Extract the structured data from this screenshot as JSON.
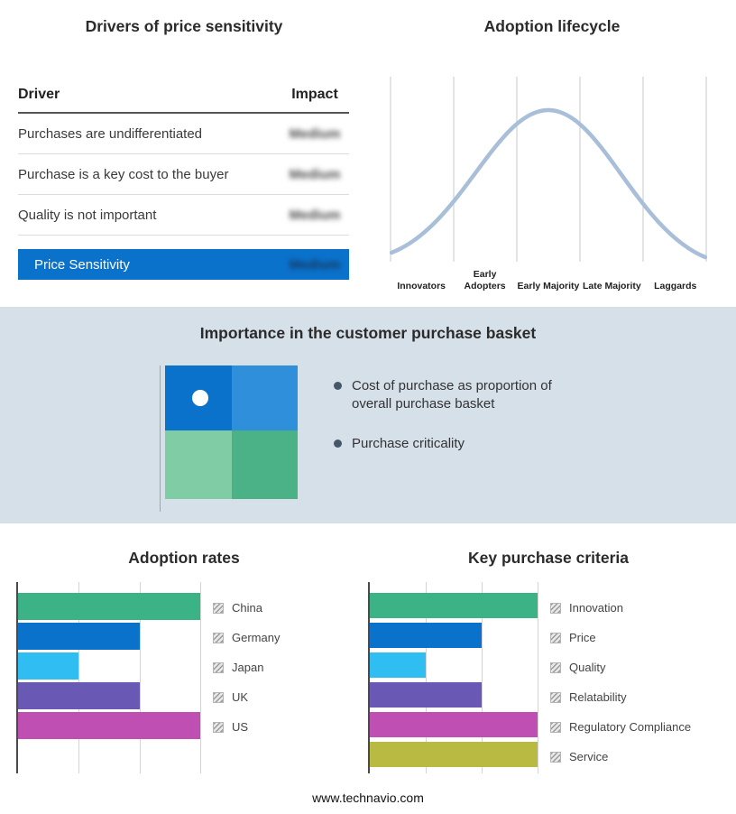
{
  "footer": "www.technavio.com",
  "drivers": {
    "title": "Drivers of price sensitivity",
    "columns": {
      "driver": "Driver",
      "impact": "Impact"
    },
    "rows": [
      {
        "driver": "Purchases are undifferentiated",
        "impact": "Medium"
      },
      {
        "driver": "Purchase is a key cost to the buyer",
        "impact": "Medium"
      },
      {
        "driver": "Quality is not important",
        "impact": "Medium"
      }
    ],
    "highlight_row": {
      "driver": "Price Sensitivity",
      "impact": "Medium"
    },
    "highlight_color": "#0b72cc"
  },
  "lifecycle": {
    "curve_color": "#a9bed8"
  },
  "basket": {
    "title": "Importance in the customer purchase basket",
    "background": "#d6e0e9",
    "bullets": [
      "Cost of purchase as proportion of overall purchase basket",
      "Purchase criticality"
    ],
    "quadrant": {
      "top_left": "#0b72cc",
      "top_right": "#2f8fdb",
      "bottom_left": "#7fcca5",
      "bottom_right": "#4bb287"
    }
  },
  "chart_data": [
    {
      "type": "line",
      "title": "Adoption lifecycle",
      "shape": "bell-curve",
      "categories": [
        "Innovators",
        "Early Adopters",
        "Early Majority",
        "Late Majority",
        "Laggards"
      ],
      "approx_profile": [
        5,
        50,
        100,
        50,
        5
      ],
      "grid": true,
      "legend_position": "none"
    },
    {
      "type": "bar",
      "title": "Adoption rates",
      "orientation": "horizontal",
      "categories": [
        "China",
        "Germany",
        "Japan",
        "UK",
        "US"
      ],
      "values": [
        3,
        2,
        1,
        2,
        3
      ],
      "colors": [
        "#3cb287",
        "#0b72cc",
        "#2fbdf2",
        "#6a58b5",
        "#bf4fb2"
      ],
      "xlim": [
        0,
        3
      ],
      "grid": true,
      "legend_position": "right"
    },
    {
      "type": "bar",
      "title": "Key purchase criteria",
      "orientation": "horizontal",
      "categories": [
        "Innovation",
        "Price",
        "Quality",
        "Relatability",
        "Regulatory Compliance",
        "Service"
      ],
      "values": [
        3,
        2,
        1,
        2,
        3,
        3
      ],
      "colors": [
        "#3cb287",
        "#0b72cc",
        "#2fbdf2",
        "#6a58b5",
        "#bf4fb2",
        "#b9ba41"
      ],
      "xlim": [
        0,
        3
      ],
      "grid": true,
      "legend_position": "right"
    }
  ]
}
